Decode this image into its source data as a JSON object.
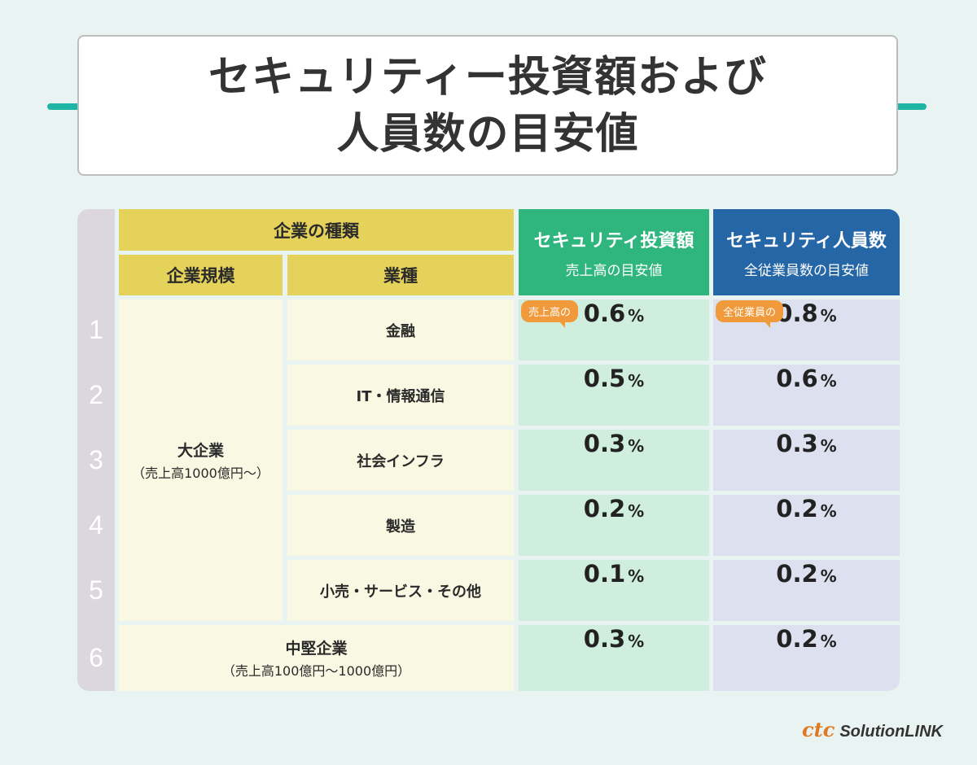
{
  "title": {
    "line1": "セキュリティー投資額および",
    "line2": "人員数の目安値"
  },
  "colors": {
    "background": "#e9f3f1",
    "accent": "#1fb5a5",
    "yellow": "#e5d25a",
    "green": "#2fb57e",
    "blue": "#2566a6",
    "bubble": "#f19a3b"
  },
  "header": {
    "company_type": "企業の種類",
    "size": "企業規模",
    "industry": "業種",
    "invest_title": "セキュリティ投資額",
    "invest_sub": "売上高の目安値",
    "staff_title": "セキュリティ人員数",
    "staff_sub": "全従業員数の目安値"
  },
  "bubbles": {
    "invest": "売上高の",
    "staff": "全従業員の"
  },
  "groups": {
    "large": {
      "name": "大企業",
      "note": "（売上高1000億円〜）"
    },
    "mid": {
      "name": "中堅企業",
      "note": "（売上高100億円〜1000億円）"
    }
  },
  "rows": [
    {
      "num": "1",
      "industry": "金融",
      "invest": "0.6",
      "staff": "0.8"
    },
    {
      "num": "2",
      "industry": "IT・情報通信",
      "invest": "0.5",
      "staff": "0.6"
    },
    {
      "num": "3",
      "industry": "社会インフラ",
      "invest": "0.3",
      "staff": "0.3"
    },
    {
      "num": "4",
      "industry": "製造",
      "invest": "0.2",
      "staff": "0.2"
    },
    {
      "num": "5",
      "industry": "小売・サービス・その他",
      "invest": "0.1",
      "staff": "0.2"
    },
    {
      "num": "6",
      "industry": "",
      "invest": "0.3",
      "staff": "0.2"
    }
  ],
  "unit": "%",
  "logo": {
    "mark": "ctc",
    "text": "SolutionLINK"
  }
}
